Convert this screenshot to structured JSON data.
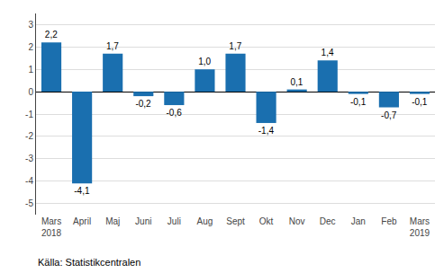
{
  "chart_data": {
    "type": "bar",
    "categories": [
      "Mars\n2018",
      "April",
      "Maj",
      "Juni",
      "Juli",
      "Aug",
      "Sept",
      "Okt",
      "Nov",
      "Dec",
      "Jan",
      "Feb",
      "Mars\n2019"
    ],
    "values": [
      2.2,
      -4.1,
      1.7,
      -0.2,
      -0.6,
      1.0,
      1.7,
      -1.4,
      0.1,
      1.4,
      -0.1,
      -0.7,
      -0.1
    ],
    "value_labels": [
      "2,2",
      "-4,1",
      "1,7",
      "-0,2",
      "-0,6",
      "1,0",
      "1,7",
      "-1,4",
      "0,1",
      "1,4",
      "-0,1",
      "-0,7",
      "-0,1"
    ],
    "color": "#1a6faf",
    "ylim": [
      -5.5,
      3.5
    ],
    "yticks": [
      -5,
      -4,
      -3,
      -2,
      -1,
      0,
      1,
      2,
      3
    ],
    "grid": true,
    "data_labels": true,
    "annotations": [
      "Källa: Statistikcentralen"
    ]
  }
}
